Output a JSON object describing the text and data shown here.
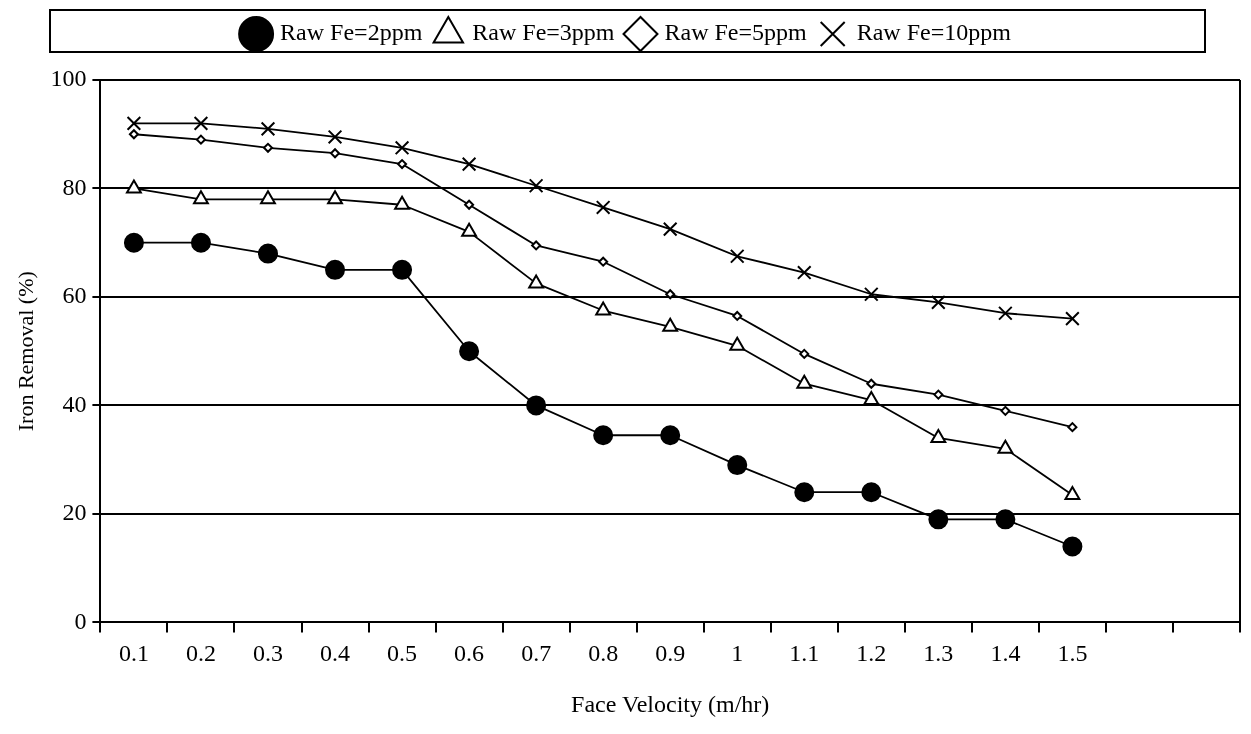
{
  "chart_data": {
    "type": "line",
    "xlabel": "Face Velocity (m/hr)",
    "ylabel": "Iron Removal (%)",
    "categories": [
      "0.1",
      "0.2",
      "0.3",
      "0.4",
      "0.5",
      "0.6",
      "0.7",
      "0.8",
      "0.9",
      "1",
      "1.1",
      "1.2",
      "1.3",
      "1.4",
      "1.5",
      null,
      null
    ],
    "series": [
      {
        "name": "Raw Fe=2ppm",
        "color": "#000000",
        "marker": "circle",
        "values": [
          70,
          70,
          68,
          65,
          65,
          50,
          40,
          34.5,
          34.5,
          29,
          24,
          24,
          19,
          19,
          14,
          null,
          null
        ]
      },
      {
        "name": "Raw Fe=3ppm",
        "color": "#000000",
        "marker": "triangle",
        "values": [
          80,
          78,
          78,
          78,
          77,
          72,
          62.5,
          57.5,
          54.5,
          51,
          44,
          41,
          34,
          32,
          23.5,
          null,
          null
        ]
      },
      {
        "name": "Raw Fe=5ppm",
        "color": "#000000",
        "marker": "diamond",
        "values": [
          90,
          89,
          87.5,
          86.5,
          84.5,
          77,
          69.5,
          66.5,
          60.5,
          56.5,
          49.5,
          44,
          42,
          39,
          36,
          null,
          null
        ]
      },
      {
        "name": "Raw Fe=10ppm",
        "color": "#000000",
        "marker": "cross",
        "values": [
          92,
          92,
          91,
          89.5,
          87.5,
          84.5,
          80.5,
          76.5,
          72.5,
          67.5,
          64.5,
          60.5,
          59,
          57,
          56,
          null,
          null
        ]
      }
    ],
    "ylim": [
      0,
      100
    ],
    "yticks": [
      0,
      20,
      40,
      60,
      80,
      100
    ],
    "grid": "y",
    "legend": "top",
    "line_style": "solid"
  }
}
